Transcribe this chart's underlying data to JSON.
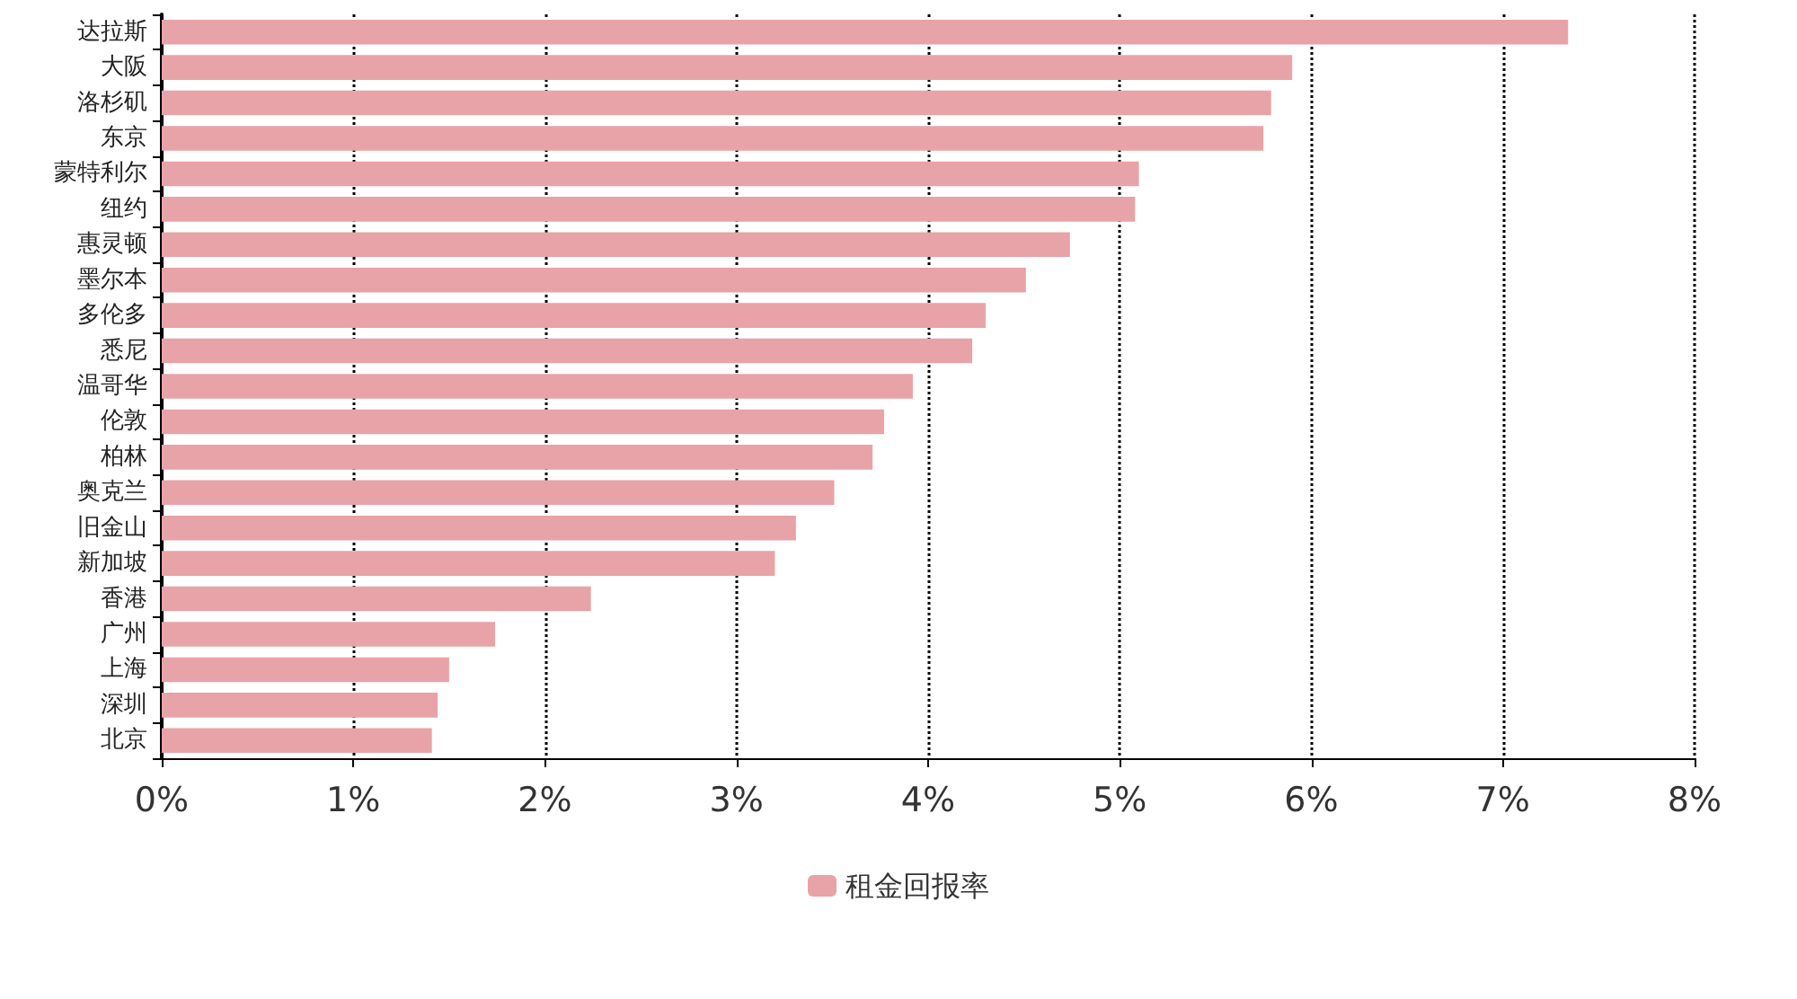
{
  "chart_data": {
    "type": "bar",
    "orientation": "horizontal",
    "categories": [
      "达拉斯",
      "大阪",
      "洛杉矶",
      "东京",
      "蒙特利尔",
      "纽约",
      "惠灵顿",
      "墨尔本",
      "多伦多",
      "悉尼",
      "温哥华",
      "伦敦",
      "柏林",
      "奥克兰",
      "旧金山",
      "新加坡",
      "香港",
      "广州",
      "上海",
      "深圳",
      "北京"
    ],
    "series": [
      {
        "name": "租金回报率",
        "color": "#e8a3a8",
        "values": [
          7.34,
          5.9,
          5.79,
          5.75,
          5.1,
          5.08,
          4.74,
          4.51,
          4.3,
          4.23,
          3.92,
          3.77,
          3.71,
          3.51,
          3.31,
          3.2,
          2.24,
          1.74,
          1.5,
          1.44,
          1.41
        ]
      }
    ],
    "xlim": [
      0,
      8
    ],
    "xticks": [
      {
        "value": 0,
        "label": "0%"
      },
      {
        "value": 1,
        "label": "1%"
      },
      {
        "value": 2,
        "label": "2%"
      },
      {
        "value": 3,
        "label": "3%"
      },
      {
        "value": 4,
        "label": "4%"
      },
      {
        "value": 5,
        "label": "5%"
      },
      {
        "value": 6,
        "label": "6%"
      },
      {
        "value": 7,
        "label": "7%"
      },
      {
        "value": 8,
        "label": "8%"
      }
    ],
    "grid": "x",
    "legend": "bottom",
    "line_style": "dotted"
  }
}
